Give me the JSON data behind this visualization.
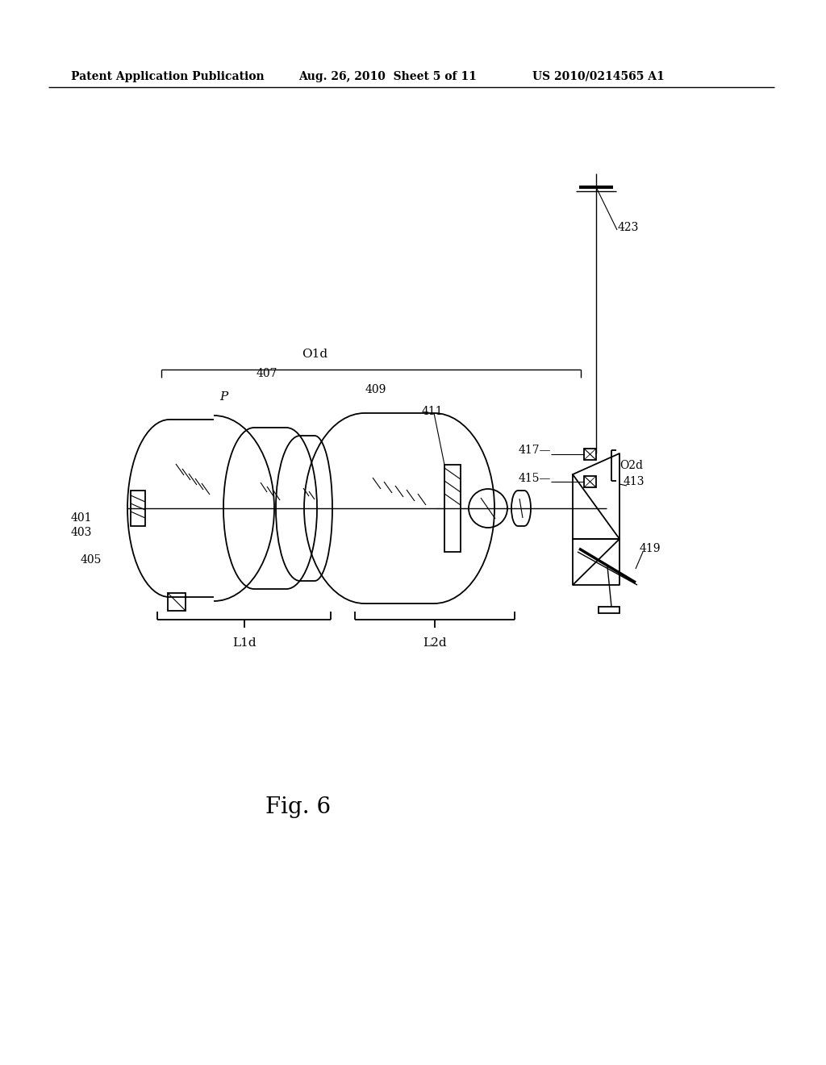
{
  "header_left": "Patent Application Publication",
  "header_mid": "Aug. 26, 2010  Sheet 5 of 11",
  "header_right": "US 2010/0214565 A1",
  "figure_label": "Fig. 6",
  "bg_color": "#ffffff"
}
